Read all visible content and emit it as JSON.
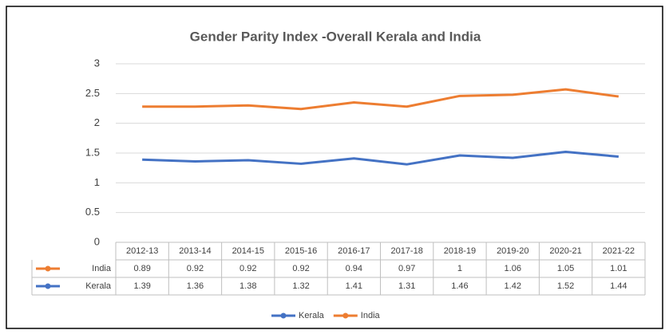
{
  "chart_data": {
    "type": "line",
    "stacked": true,
    "title": "Gender Parity Index -Overall Kerala and India",
    "categories": [
      "2012-13",
      "2013-14",
      "2014-15",
      "2015-16",
      "2016-17",
      "2017-18",
      "2018-19",
      "2019-20",
      "2020-21",
      "2021-22"
    ],
    "series": [
      {
        "name": "Kerala",
        "color": "#4472c4",
        "values": [
          1.39,
          1.36,
          1.38,
          1.32,
          1.41,
          1.31,
          1.46,
          1.42,
          1.52,
          1.44
        ]
      },
      {
        "name": "India",
        "color": "#ed7d31",
        "values": [
          0.89,
          0.92,
          0.92,
          0.92,
          0.94,
          0.97,
          1,
          1.06,
          1.05,
          1.01
        ]
      }
    ],
    "ylim": [
      0,
      3
    ],
    "yticks": [
      0,
      0.5,
      1,
      1.5,
      2,
      2.5,
      3
    ],
    "grid": true,
    "data_table": true,
    "legend": "bottom"
  }
}
